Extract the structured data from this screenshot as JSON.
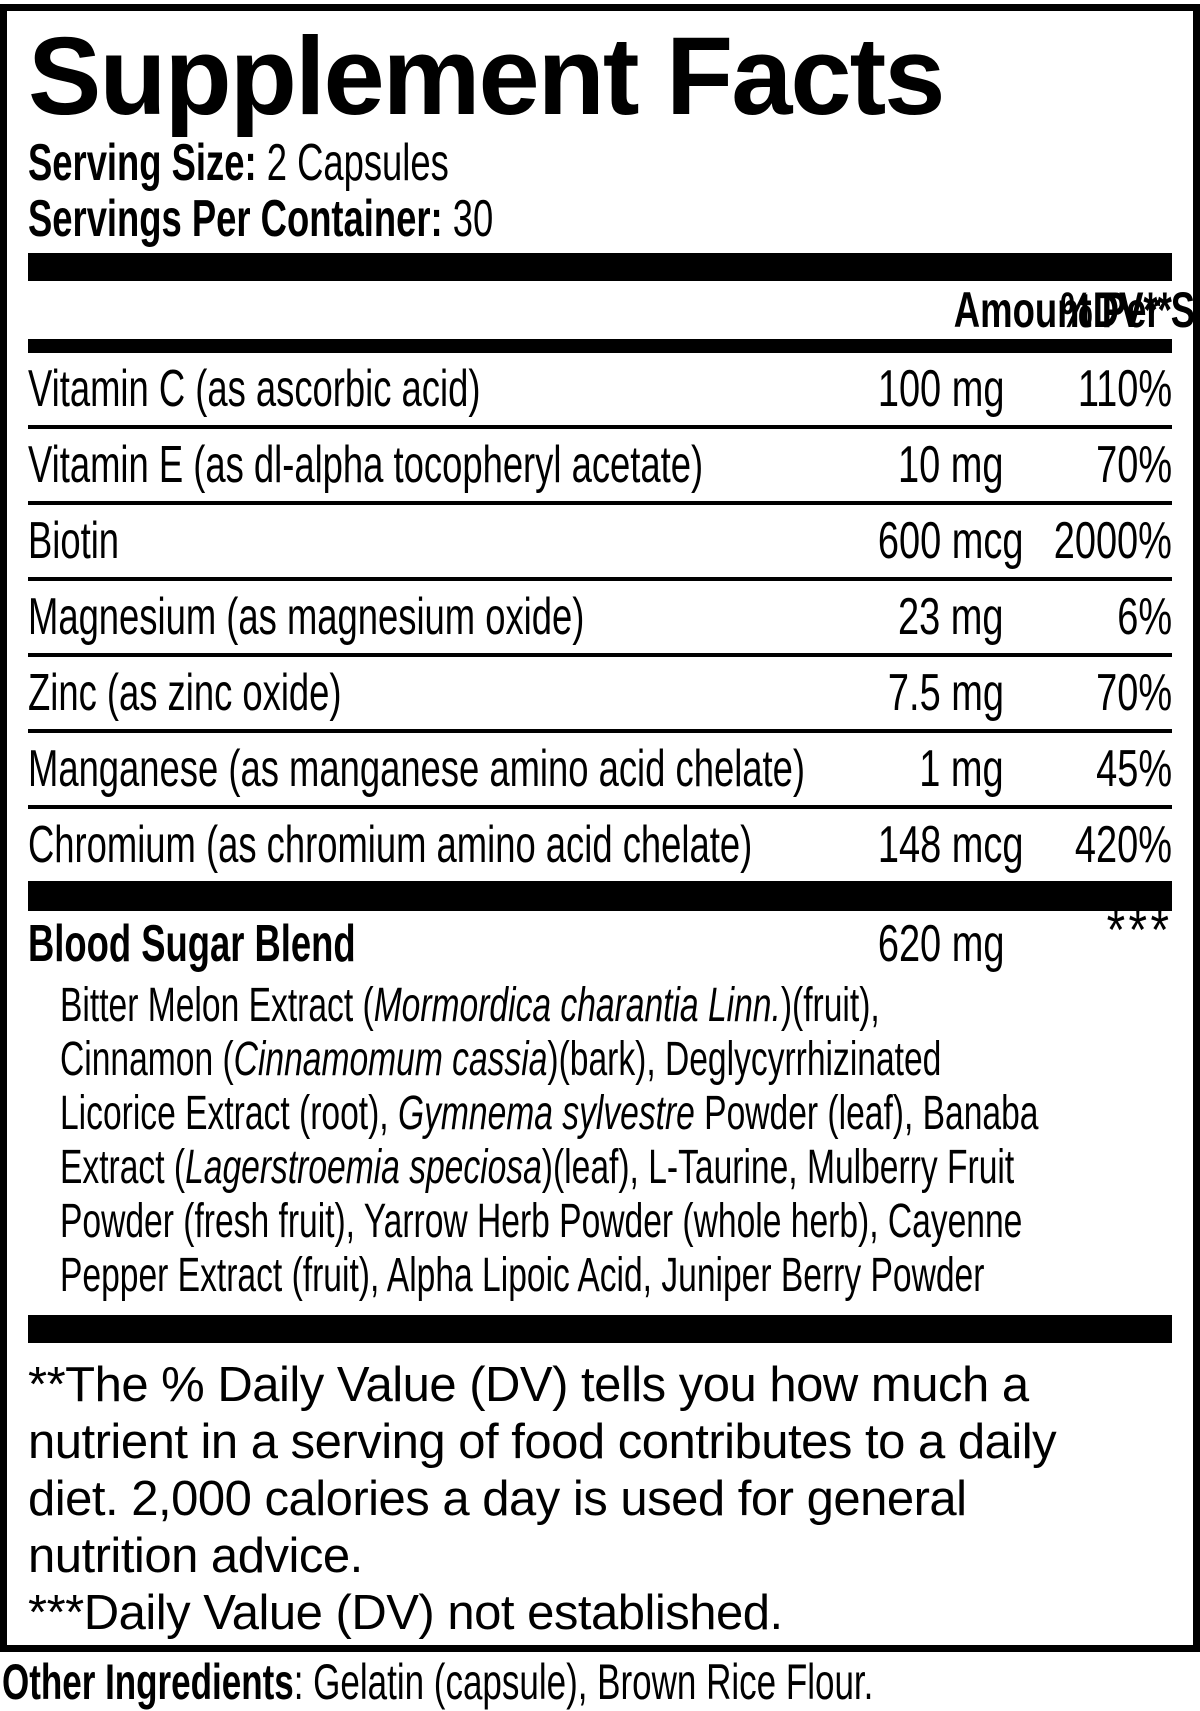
{
  "panel": {
    "title": "Supplement Facts",
    "serving_size_label": "Serving Size:",
    "serving_size_value": " 2 Capsules",
    "servings_per_container_label": "Servings Per Container:",
    "servings_per_container_value": " 30",
    "columns": {
      "amount": "Amount Per Serving",
      "dv": "%DV**"
    },
    "nutrients": [
      {
        "name": "Vitamin C (as ascorbic acid)",
        "amount": "100 mg",
        "dv": "110%"
      },
      {
        "name": "Vitamin E (as dl-alpha tocopheryl acetate)",
        "amount": "10 mg",
        "dv": "70%"
      },
      {
        "name": "Biotin",
        "amount": "600 mcg",
        "dv": "2000%"
      },
      {
        "name": "Magnesium (as magnesium oxide)",
        "amount": "23 mg",
        "dv": "6%"
      },
      {
        "name": "Zinc (as zinc oxide)",
        "amount": "7.5 mg",
        "dv": "70%"
      },
      {
        "name": "Manganese (as manganese amino acid chelate)",
        "amount": "1 mg",
        "dv": "45%"
      },
      {
        "name": "Chromium (as chromium amino acid chelate)",
        "amount": "148 mcg",
        "dv": "420%"
      }
    ],
    "blend": {
      "name": "Blood Sugar Blend",
      "amount": "620 mg",
      "dv": "***",
      "description_lines": [
        [
          {
            "t": "Bitter Melon Extract ("
          },
          {
            "t": "Mormordica charantia Linn.",
            "i": true
          },
          {
            "t": ")(fruit),"
          }
        ],
        [
          {
            "t": "Cinnamon ("
          },
          {
            "t": "Cinnamomum cassia",
            "i": true
          },
          {
            "t": ")(bark), Deglycyrrhizinated"
          }
        ],
        [
          {
            "t": "Licorice Extract (root), "
          },
          {
            "t": "Gymnema sylvestre",
            "i": true
          },
          {
            "t": " Powder (leaf), Banaba"
          }
        ],
        [
          {
            "t": "Extract ("
          },
          {
            "t": "Lagerstroemia speciosa",
            "i": true
          },
          {
            "t": ")(leaf), L-Taurine, Mulberry Fruit"
          }
        ],
        [
          {
            "t": "Powder (fresh fruit), Yarrow Herb Powder (whole herb), Cayenne"
          }
        ],
        [
          {
            "t": "Pepper Extract (fruit), Alpha Lipoic Acid, Juniper Berry Powder"
          }
        ]
      ]
    },
    "footnote_lines": [
      "**The % Daily Value (DV) tells you how much a",
      "nutrient in a serving of food contributes to a daily",
      "diet. 2,000 calories a day is used for general",
      "nutrition advice."
    ],
    "footnote2": "***Daily Value (DV) not established."
  },
  "other_ingredients": {
    "label": "Other Ingredients",
    "value": ": Gelatin (capsule), Brown Rice Flour."
  },
  "colors": {
    "ink": "#000000",
    "paper": "#ffffff"
  }
}
